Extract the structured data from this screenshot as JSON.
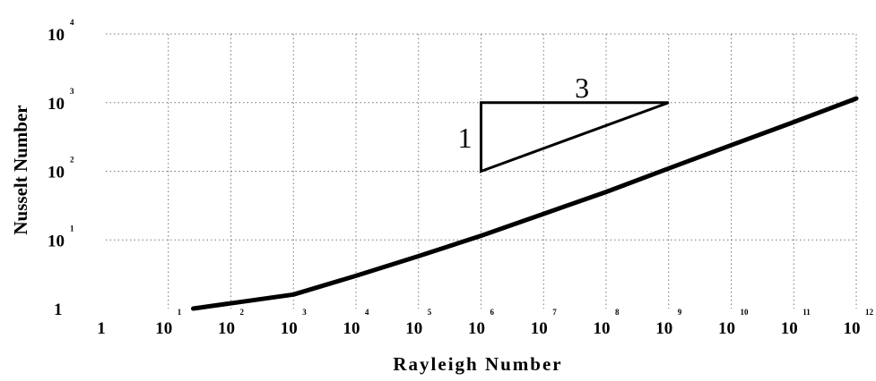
{
  "chart_data": {
    "type": "line",
    "xlabel": "Rayleigh Number",
    "ylabel": "Nusselt Number",
    "x_scale": "log",
    "y_scale": "log",
    "xlim": [
      1,
      1000000000000.0
    ],
    "ylim": [
      1,
      10000
    ],
    "grid": true,
    "x_ticks": [
      {
        "base": "1",
        "exp": ""
      },
      {
        "base": "10",
        "exp": "1"
      },
      {
        "base": "10",
        "exp": "2"
      },
      {
        "base": "10",
        "exp": "3"
      },
      {
        "base": "10",
        "exp": "4"
      },
      {
        "base": "10",
        "exp": "5"
      },
      {
        "base": "10",
        "exp": "6"
      },
      {
        "base": "10",
        "exp": "7"
      },
      {
        "base": "10",
        "exp": "8"
      },
      {
        "base": "10",
        "exp": "9"
      },
      {
        "base": "10",
        "exp": "10"
      },
      {
        "base": "10",
        "exp": "11"
      },
      {
        "base": "10",
        "exp": "12"
      }
    ],
    "y_ticks": [
      {
        "base": "1",
        "exp": ""
      },
      {
        "base": "10",
        "exp": "1"
      },
      {
        "base": "10",
        "exp": "2"
      },
      {
        "base": "10",
        "exp": "3"
      },
      {
        "base": "10",
        "exp": "4"
      }
    ],
    "series": [
      {
        "x": [
          25,
          1000,
          10000,
          100000,
          1000000,
          10000000,
          100000000,
          1000000000,
          10000000000,
          100000000000,
          1000000000000
        ],
        "y": [
          1.0,
          1.6,
          3.0,
          5.8,
          11.5,
          24,
          50,
          110,
          240,
          520,
          1150
        ]
      }
    ],
    "annotations": {
      "slope_triangle": {
        "corner": [
          1000000,
          1000
        ],
        "bottom": [
          1000000,
          100
        ],
        "right": [
          1000000000,
          1000
        ],
        "run_label": "3",
        "rise_label": "1"
      }
    }
  }
}
